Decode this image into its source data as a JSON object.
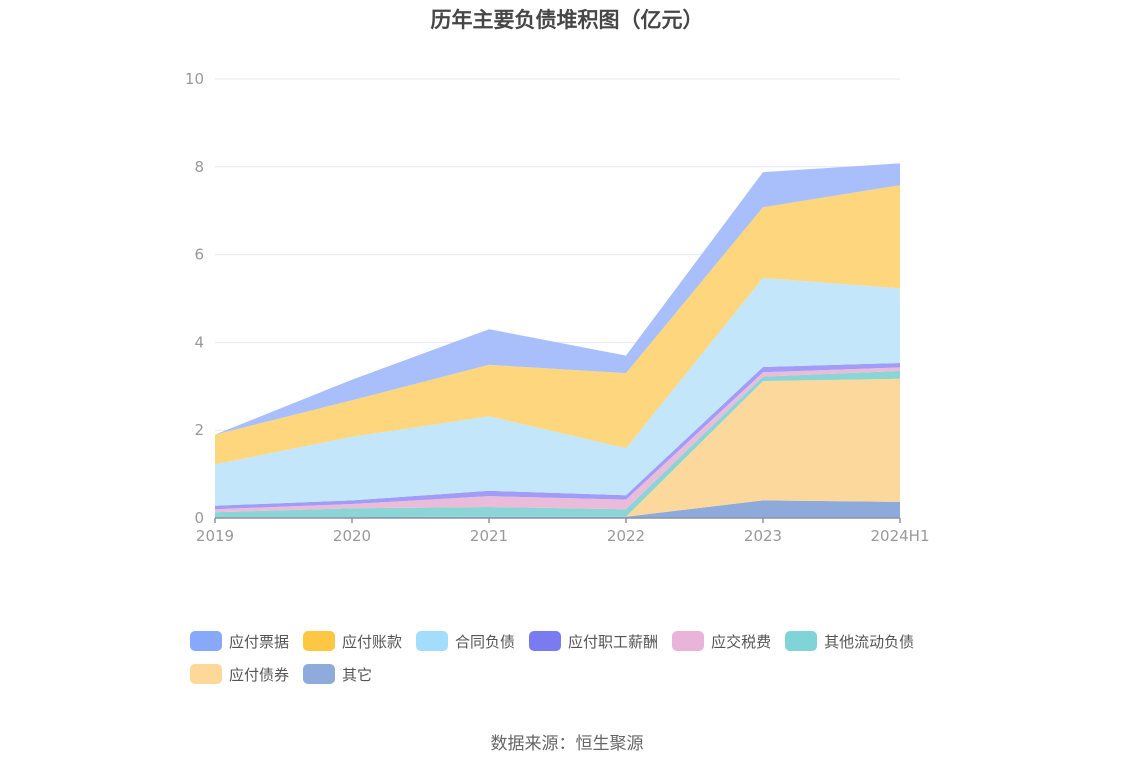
{
  "title": "历年主要负债堆积图（亿元）",
  "source": "数据来源：恒生聚源",
  "chart_data": {
    "type": "area",
    "stacked": true,
    "title": "历年主要负债堆积图（亿元）",
    "xlabel": "",
    "ylabel": "",
    "categories": [
      "2019",
      "2020",
      "2021",
      "2022",
      "2023",
      "2024H1"
    ],
    "ylim": [
      0,
      10
    ],
    "yticks": [
      0,
      2,
      4,
      6,
      8,
      10
    ],
    "grid": true,
    "legend_position": "bottom",
    "series": [
      {
        "name": "其它",
        "color": "#8eaadb",
        "values": [
          0.02,
          0.02,
          0.03,
          0.03,
          0.4,
          0.37
        ]
      },
      {
        "name": "应付债券",
        "color": "#fdd89c",
        "values": [
          0.0,
          0.0,
          0.0,
          0.0,
          2.72,
          2.8
        ]
      },
      {
        "name": "其他流动负债",
        "color": "#8ad5d5",
        "values": [
          0.11,
          0.2,
          0.22,
          0.17,
          0.1,
          0.18
        ]
      },
      {
        "name": "应交税费",
        "color": "#ebbcd9",
        "values": [
          0.07,
          0.1,
          0.25,
          0.22,
          0.1,
          0.08
        ]
      },
      {
        "name": "应付职工薪酬",
        "color": "#a09cf7",
        "values": [
          0.08,
          0.08,
          0.12,
          0.1,
          0.12,
          0.1
        ]
      },
      {
        "name": "合同负债",
        "color": "#c3e6fa",
        "values": [
          0.94,
          1.45,
          1.7,
          1.07,
          2.03,
          1.7
        ]
      },
      {
        "name": "应付账款",
        "color": "#fed67e",
        "values": [
          0.68,
          0.83,
          1.17,
          1.71,
          1.61,
          2.35
        ]
      },
      {
        "name": "应付票据",
        "color": "#a9bffb",
        "values": [
          0.0,
          0.47,
          0.81,
          0.4,
          0.8,
          0.5
        ]
      }
    ],
    "legend": [
      {
        "name": "应付票据",
        "color": "#88a8fa"
      },
      {
        "name": "应付账款",
        "color": "#fdc743"
      },
      {
        "name": "合同负债",
        "color": "#a4dcfb"
      },
      {
        "name": "应付职工薪酬",
        "color": "#7b7bf1"
      },
      {
        "name": "应交税费",
        "color": "#eab4d8"
      },
      {
        "name": "其他流动负债",
        "color": "#80d3d6"
      },
      {
        "name": "应付债券",
        "color": "#fed898"
      },
      {
        "name": "其它",
        "color": "#8fabdc"
      }
    ]
  }
}
